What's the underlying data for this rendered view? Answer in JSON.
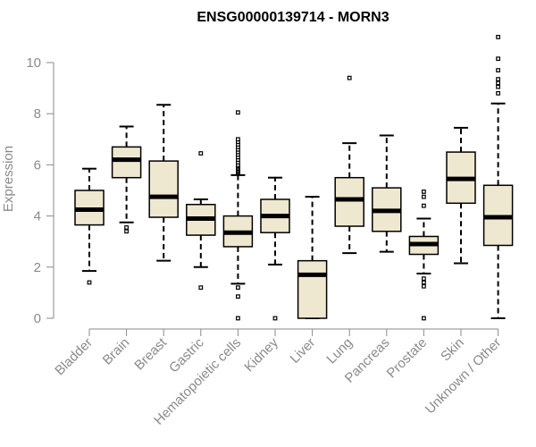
{
  "chart_data": {
    "type": "boxplot",
    "title": "ENSG00000139714 - MORN3",
    "xlabel": "",
    "ylabel": "Expression",
    "ylim": [
      0,
      11
    ],
    "yticks": [
      0,
      2,
      4,
      6,
      8,
      10
    ],
    "box_color": "#efe8d0",
    "stroke_color": "#000000",
    "categories": [
      "Bladder",
      "Brain",
      "Breast",
      "Gastric",
      "Hematopoietic cells",
      "Kidney",
      "Liver",
      "Lung",
      "Pancreas",
      "Prostate",
      "Skin",
      "Unknown / Other"
    ],
    "boxes": [
      {
        "min": 1.85,
        "q1": 3.65,
        "median": 4.25,
        "q3": 5.0,
        "max": 5.85,
        "outliers": [
          1.4
        ]
      },
      {
        "min": 3.75,
        "q1": 5.5,
        "median": 6.2,
        "q3": 6.7,
        "max": 7.5,
        "outliers": [
          3.4,
          3.55
        ]
      },
      {
        "min": 2.25,
        "q1": 3.95,
        "median": 4.75,
        "q3": 6.15,
        "max": 8.35,
        "outliers": []
      },
      {
        "min": 2.0,
        "q1": 3.25,
        "median": 3.9,
        "q3": 4.45,
        "max": 4.65,
        "outliers": [
          1.2,
          6.45
        ]
      },
      {
        "min": 1.35,
        "q1": 2.8,
        "median": 3.35,
        "q3": 4.0,
        "max": 5.6,
        "outliers": [
          0.0,
          0.85,
          1.2,
          5.7,
          5.75,
          5.8,
          5.85,
          5.9,
          5.95,
          6.0,
          6.1,
          6.2,
          6.3,
          6.4,
          6.5,
          6.6,
          6.7,
          6.8,
          6.9,
          7.0,
          8.05
        ]
      },
      {
        "min": 2.1,
        "q1": 3.35,
        "median": 4.0,
        "q3": 4.65,
        "max": 5.5,
        "outliers": [
          0.0
        ]
      },
      {
        "min": 0.0,
        "q1": 0.0,
        "median": 1.7,
        "q3": 2.25,
        "max": 4.75,
        "outliers": []
      },
      {
        "min": 2.55,
        "q1": 3.6,
        "median": 4.65,
        "q3": 5.5,
        "max": 6.85,
        "outliers": [
          9.4
        ]
      },
      {
        "min": 2.6,
        "q1": 3.4,
        "median": 4.2,
        "q3": 5.1,
        "max": 7.15,
        "outliers": []
      },
      {
        "min": 1.75,
        "q1": 2.5,
        "median": 2.9,
        "q3": 3.2,
        "max": 3.9,
        "outliers": [
          0.0,
          1.25,
          1.4,
          1.55,
          4.4,
          4.75,
          4.95
        ]
      },
      {
        "min": 2.15,
        "q1": 4.5,
        "median": 5.45,
        "q3": 6.5,
        "max": 7.45,
        "outliers": []
      },
      {
        "min": 0.0,
        "q1": 2.85,
        "median": 3.95,
        "q3": 5.2,
        "max": 8.4,
        "outliers": [
          8.8,
          9.05,
          9.2,
          9.35,
          9.7,
          10.15,
          11.0
        ]
      }
    ]
  }
}
